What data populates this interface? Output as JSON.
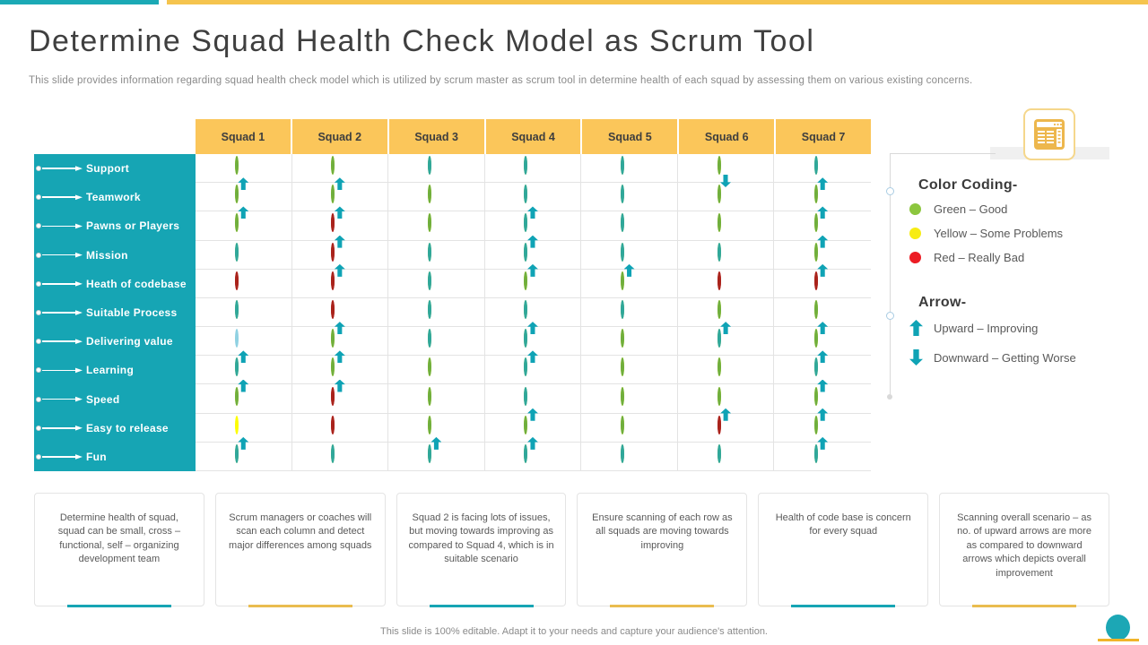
{
  "slide": {
    "title": "Determine Squad Health Check Model as Scrum Tool",
    "subtitle": "This slide provides information regarding squad health check model which is utilized by scrum master as scrum tool in determine health of each squad by assessing them on various existing concerns.",
    "footer_note": "This slide is 100% editable. Adapt it to your needs and capture your audience's attention."
  },
  "table": {
    "columns": [
      "Squad 1",
      "Squad 2",
      "Squad 3",
      "Squad 4",
      "Squad 5",
      "Squad 6",
      "Squad 7"
    ],
    "rows": [
      {
        "label": "Support",
        "cells": [
          "yellow",
          "yellow",
          "green",
          "green",
          "green",
          "yellow:down",
          "green"
        ]
      },
      {
        "label": "Teamwork",
        "cells": [
          "yellow:up",
          "yellow:up",
          "yellow",
          "green",
          "green",
          "yellow",
          "yellow:up"
        ]
      },
      {
        "label": "Pawns or Players",
        "cells": [
          "yellow:up",
          "red:up",
          "yellow",
          "green:up",
          "green",
          "yellow",
          "yellow:up"
        ]
      },
      {
        "label": "Mission",
        "cells": [
          "green",
          "red:up",
          "green",
          "green:up",
          "green",
          "green",
          "yellow:up"
        ]
      },
      {
        "label": "Heath of codebase",
        "cells": [
          "red",
          "red:up",
          "green",
          "yellow:up",
          "yellow:up",
          "red",
          "red:up"
        ]
      },
      {
        "label": "Suitable Process",
        "cells": [
          "green",
          "red",
          "green",
          "green",
          "green",
          "yellow",
          "yellow"
        ]
      },
      {
        "label": "Delivering value",
        "cells": [
          "white",
          "yellow:up",
          "green",
          "green:up",
          "yellow",
          "green:up",
          "yellow:up"
        ]
      },
      {
        "label": "Learning",
        "cells": [
          "green:up",
          "yellow:up",
          "yellow",
          "green:up",
          "yellow",
          "yellow",
          "green:up"
        ]
      },
      {
        "label": "Speed",
        "cells": [
          "yellow:up",
          "red:up",
          "yellow",
          "green",
          "yellow",
          "yellow",
          "yellow:up"
        ]
      },
      {
        "label": "Easy to release",
        "cells": [
          "yellow-plain",
          "red",
          "yellow",
          "yellow:up",
          "yellow",
          "red:up",
          "yellow:up"
        ]
      },
      {
        "label": "Fun",
        "cells": [
          "green:up",
          "green",
          "green:up",
          "green:up",
          "green",
          "green",
          "green:up"
        ]
      }
    ]
  },
  "legend": {
    "color_heading": "Color Coding-",
    "color_items": [
      {
        "swatch": "green",
        "label": "Green – Good"
      },
      {
        "swatch": "yellow",
        "label": "Yellow – Some Problems"
      },
      {
        "swatch": "red",
        "label": "Red – Really Bad"
      }
    ],
    "arrow_heading": "Arrow-",
    "arrow_items": [
      {
        "dir": "up",
        "label": "Upward – Improving"
      },
      {
        "dir": "down",
        "label": "Downward – Getting Worse"
      }
    ]
  },
  "cards": [
    {
      "text": "Determine health of squad, squad can be small, cross – functional, self – organizing development team",
      "accent": "teal"
    },
    {
      "text": "Scrum managers or coaches will scan each column and detect major differences among squads",
      "accent": "yellow"
    },
    {
      "text": "Squad 2 is facing lots of issues, but moving towards improving as compared to Squad 4, which is in suitable scenario",
      "accent": "teal"
    },
    {
      "text": "Ensure scanning of each row as all squads are moving towards improving",
      "accent": "yellow"
    },
    {
      "text": "Health of code base is concern for every  squad",
      "accent": "teal"
    },
    {
      "text": "Scanning overall scenario – as no. of upward arrows are more as compared to downward arrows which depicts overall improvement",
      "accent": "yellow"
    }
  ],
  "icons": {
    "corner_icon": "report-window-icon",
    "row_pointer": "arrow-right-icon",
    "cell_up": "up-arrow-icon",
    "cell_down": "down-arrow-icon"
  },
  "colors": {
    "teal": "#16A5B4",
    "header_yellow": "#FBC65A",
    "accent_yellow": "#E9BC4F",
    "arrow_teal": "#0FA3B5",
    "dot_green": "#8CC63E",
    "dot_green_stroke": "#2FA79B",
    "dot_yellow": "#FDFD02",
    "dot_yellow_stroke": "#6FAE3E",
    "dot_red": "#E7222E",
    "dot_red_stroke": "#A8231B",
    "dot_white_stroke": "#8FD1E2",
    "legend_green": "#8CC63E",
    "legend_yellow": "#F7EC13",
    "legend_red": "#EC1C24"
  }
}
